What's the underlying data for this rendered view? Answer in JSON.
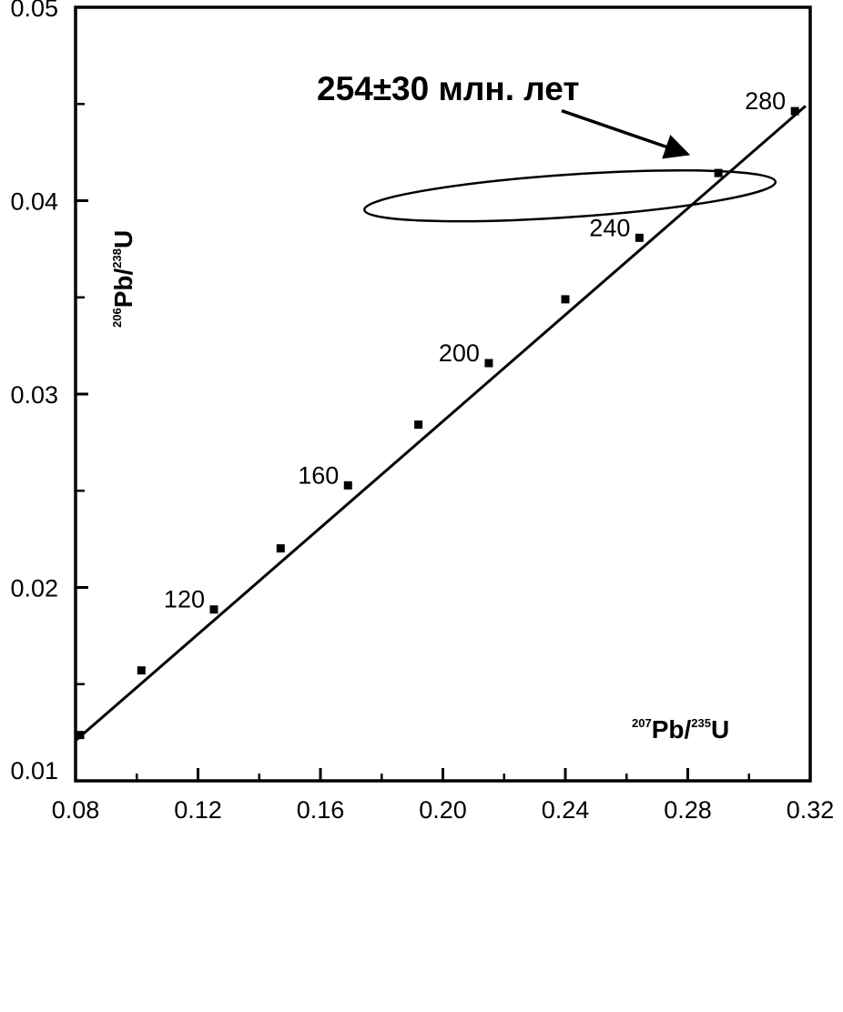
{
  "chart_data": {
    "type": "line",
    "title": "",
    "xlabel": {
      "sup1": "207",
      "base1": "Pb/",
      "sup2": "235",
      "base2": "U"
    },
    "ylabel": {
      "sup1": "206",
      "base1": "Pb/",
      "sup2": "238",
      "base2": "U"
    },
    "xlim": [
      0.08,
      0.32
    ],
    "ylim": [
      0.01,
      0.05
    ],
    "x_ticks": [
      "0.08",
      "0.12",
      "0.16",
      "0.20",
      "0.24",
      "0.28",
      "0.32"
    ],
    "x_tick_values": [
      0.08,
      0.12,
      0.16,
      0.2,
      0.24,
      0.28,
      0.32
    ],
    "x_minor_ticks": [
      0.1,
      0.14,
      0.18,
      0.22,
      0.26,
      0.3
    ],
    "y_ticks": [
      "0.01",
      "0.02",
      "0.03",
      "0.04",
      "0.05"
    ],
    "y_tick_values": [
      0.01,
      0.02,
      0.03,
      0.04,
      0.05
    ],
    "y_minor_ticks": [
      0.015,
      0.025,
      0.035,
      0.045
    ],
    "grid": false,
    "concordia": {
      "points": [
        {
          "x": 0.0815,
          "y": 0.01237
        },
        {
          "x": 0.1015,
          "y": 0.01571
        },
        {
          "x": 0.1252,
          "y": 0.01886
        },
        {
          "x": 0.147,
          "y": 0.02202
        },
        {
          "x": 0.169,
          "y": 0.02528
        },
        {
          "x": 0.192,
          "y": 0.02842
        },
        {
          "x": 0.215,
          "y": 0.0316
        },
        {
          "x": 0.24,
          "y": 0.0349
        },
        {
          "x": 0.2642,
          "y": 0.03808
        },
        {
          "x": 0.29,
          "y": 0.04143
        },
        {
          "x": 0.315,
          "y": 0.04463
        }
      ],
      "line_extent": {
        "x": [
          0.08,
          0.3185
        ],
        "y": [
          0.01208,
          0.0449
        ]
      },
      "age_labels": [
        {
          "text": "120",
          "x": 0.1252,
          "y": 0.01886
        },
        {
          "text": "160",
          "x": 0.169,
          "y": 0.02528
        },
        {
          "text": "200",
          "x": 0.215,
          "y": 0.0316
        },
        {
          "text": "240",
          "x": 0.2642,
          "y": 0.03808
        },
        {
          "text": "280",
          "x": 0.315,
          "y": 0.04463
        }
      ]
    },
    "error_ellipse": {
      "center_x": 0.2415,
      "center_y": 0.04025,
      "semi_axis_x": 0.0673,
      "semi_axis_y": 0.0011,
      "tilt_deg": -3.9
    },
    "annotation": {
      "text": "254±30 млн. лет",
      "arrow_from": {
        "x": 0.2388,
        "y": 0.04465
      },
      "arrow_to": {
        "x": 0.28,
        "y": 0.0424
      }
    }
  }
}
